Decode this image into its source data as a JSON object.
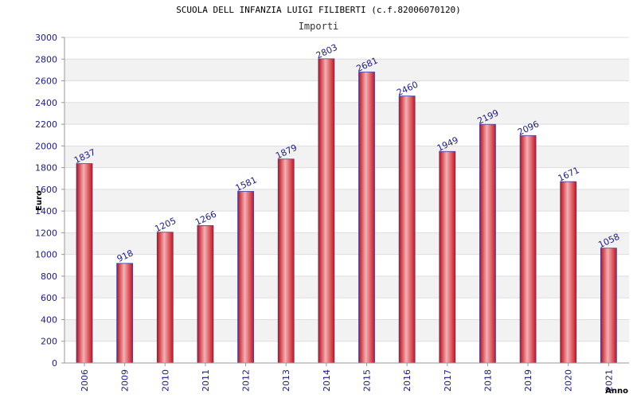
{
  "header": {
    "title": "SCUOLA DELL INFANZIA LUIGI FILIBERTI (c.f.82006070120)",
    "subtitle": "Importi"
  },
  "chart_data": {
    "type": "bar",
    "title": "SCUOLA DELL INFANZIA LUIGI FILIBERTI (c.f.82006070120)",
    "subtitle": "Importi",
    "xlabel": "Anno",
    "ylabel": "Euro",
    "categories": [
      "2006",
      "2009",
      "2010",
      "2011",
      "2012",
      "2013",
      "2014",
      "2015",
      "2016",
      "2017",
      "2018",
      "2019",
      "2020",
      "2021"
    ],
    "values": [
      1837,
      918,
      1205,
      1266,
      1581,
      1879,
      2803,
      2681,
      2460,
      1949,
      2199,
      2096,
      1671,
      1058
    ],
    "ylim": [
      0,
      3000
    ],
    "yticks": [
      0,
      200,
      400,
      600,
      800,
      1000,
      1200,
      1400,
      1600,
      1800,
      2000,
      2200,
      2400,
      2600,
      2800,
      3000
    ],
    "grid": true,
    "legend": "none",
    "colors": {
      "bar": "#e8202a",
      "bar_highlight": "#f5b0b4",
      "bar_border": "#4040a0",
      "band": "#f2f2f2",
      "label": "#1a1a8c"
    }
  }
}
